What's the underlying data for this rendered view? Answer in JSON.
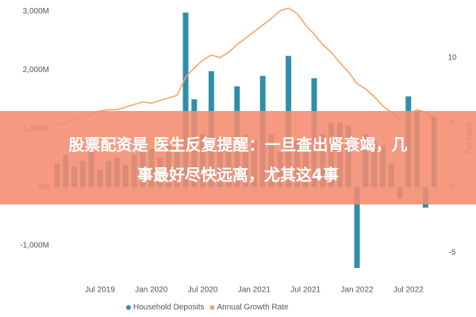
{
  "chart_data": {
    "type": "bar",
    "categories": [
      null,
      null,
      null,
      null,
      null,
      "Jul 2019",
      null,
      null,
      null,
      null,
      null,
      "Jan 2020",
      null,
      null,
      null,
      null,
      null,
      "Jul 2020",
      null,
      null,
      null,
      null,
      null,
      "Jan 2021",
      null,
      null,
      null,
      null,
      null,
      "Jul 2021",
      null,
      null,
      null,
      null,
      null,
      "Jan 2022",
      null,
      null,
      null,
      null,
      null,
      "Jul 2022",
      null,
      null,
      null
    ],
    "series": [
      {
        "name": "Household Deposits",
        "type": "bar",
        "color": "#2e8fa8",
        "values": [
          400,
          550,
          350,
          450,
          600,
          300,
          450,
          500,
          380,
          550,
          600,
          650,
          500,
          700,
          600,
          2980,
          1500,
          900,
          1980,
          800,
          700,
          1720,
          900,
          800,
          1900,
          900,
          600,
          2240,
          800,
          700,
          1860,
          900,
          1100,
          1100,
          1050,
          -1380,
          900,
          800,
          700,
          400,
          -200,
          1550,
          1300,
          -350,
          1200
        ]
      },
      {
        "name": "Annual Growth Rate",
        "type": "line",
        "axis": "y2",
        "color": "#f4a56a",
        "values": [
          4.8,
          5.0,
          5.2,
          5.4,
          5.6,
          5.9,
          6.0,
          6.0,
          6.2,
          6.4,
          6.6,
          6.5,
          6.7,
          6.9,
          7.1,
          8.5,
          9.2,
          9.8,
          10.2,
          10.0,
          10.4,
          11.0,
          11.5,
          12.0,
          12.5,
          13.0,
          13.6,
          13.8,
          13.4,
          12.5,
          11.8,
          11.0,
          10.4,
          9.6,
          8.9,
          8.0,
          7.6,
          7.0,
          6.3,
          5.8,
          5.3,
          5.6,
          6.0,
          5.8,
          5.4
        ]
      }
    ],
    "ylim": [
      -1500,
      3100
    ],
    "yticks": [
      {
        "value": 3000,
        "label": "3,000M"
      },
      {
        "value": 2000,
        "label": "2,000M"
      },
      {
        "value": 1000,
        "label": "1,000M"
      },
      {
        "value": 0,
        "label": "0M"
      },
      {
        "value": -1000,
        "label": "-1,000M"
      }
    ],
    "y2lim": [
      -6.7,
      14
    ],
    "y2ticks": [
      10,
      5,
      0,
      -5
    ],
    "y2label": "Per Cent",
    "grid": false,
    "legend": "bottom"
  },
  "banner": {
    "lines": [
      "股票配资是 医生反复提醒：一旦查出肾衰竭，几",
      "事最好尽快远离，尤其这4事"
    ]
  }
}
